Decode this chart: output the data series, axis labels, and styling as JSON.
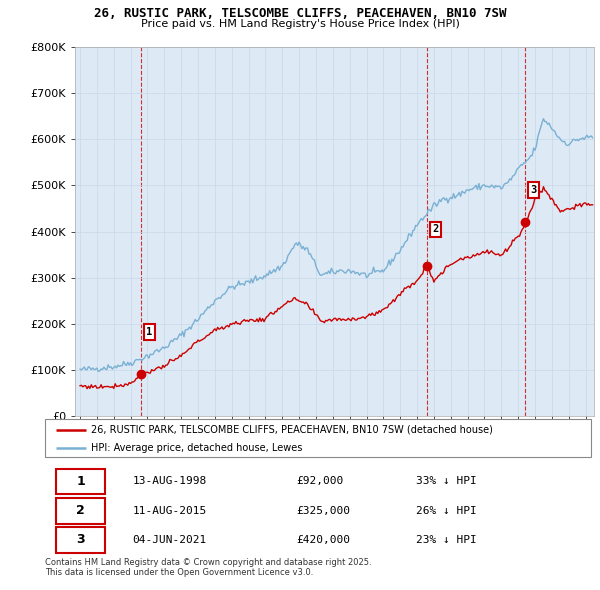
{
  "title_line1": "26, RUSTIC PARK, TELSCOMBE CLIFFS, PEACEHAVEN, BN10 7SW",
  "title_line2": "Price paid vs. HM Land Registry's House Price Index (HPI)",
  "sale_dates_num": [
    1998.617,
    2015.608,
    2021.423
  ],
  "sale_prices": [
    92000,
    325000,
    420000
  ],
  "sale_labels": [
    "1",
    "2",
    "3"
  ],
  "sale_color": "#cc0000",
  "hpi_color": "#7ab0d4",
  "legend_sale": "26, RUSTIC PARK, TELSCOMBE CLIFFS, PEACEHAVEN, BN10 7SW (detached house)",
  "legend_hpi": "HPI: Average price, detached house, Lewes",
  "table_rows": [
    [
      "1",
      "13-AUG-1998",
      "£92,000",
      "33% ↓ HPI"
    ],
    [
      "2",
      "11-AUG-2015",
      "£325,000",
      "26% ↓ HPI"
    ],
    [
      "3",
      "04-JUN-2021",
      "£420,000",
      "23% ↓ HPI"
    ]
  ],
  "footer": "Contains HM Land Registry data © Crown copyright and database right 2025.\nThis data is licensed under the Open Government Licence v3.0.",
  "ylim": [
    0,
    800000
  ],
  "xlim_start": 1994.7,
  "xlim_end": 2025.5,
  "yticks": [
    0,
    100000,
    200000,
    300000,
    400000,
    500000,
    600000,
    700000,
    800000
  ],
  "ytick_labels": [
    "£0",
    "£100K",
    "£200K",
    "£300K",
    "£400K",
    "£500K",
    "£600K",
    "£700K",
    "£800K"
  ],
  "background_color": "#eef4fb",
  "grid_color": "#c8d8e8",
  "plot_bg": "#ddeaf5"
}
